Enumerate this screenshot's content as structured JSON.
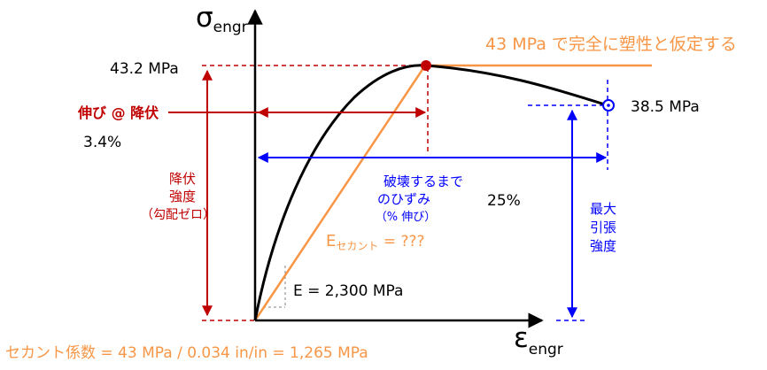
{
  "axes": {
    "y_symbol": "σ",
    "y_sub": "engr",
    "x_symbol": "ε",
    "x_sub": "engr"
  },
  "annotations": {
    "plastic_assumption": "43 MPa で完全に塑性と仮定する",
    "peak_stress": "43.2 MPa",
    "end_stress": "38.5 MPa",
    "elongation_label": "伸び @ 降伏",
    "elongation_value": "3.4%",
    "yield_line1": "降伏",
    "yield_line2": "強度",
    "yield_line3": "（勾配ゼロ）",
    "fracture_line1": "破壊するまで",
    "fracture_line2": "のひずみ",
    "fracture_line3": "（% 伸び）",
    "fracture_value": "25%",
    "uts_line1": "最大",
    "uts_line2": "引張",
    "uts_line3": "強度",
    "secant_symbol": "E",
    "secant_sub": "セカント",
    "secant_value": " = ???",
    "modulus": "E = 2,300 MPa",
    "secant_formula": "セカント係数 = 43 MPa / 0.034 in/in = 1,265 MPa"
  },
  "colors": {
    "black": "#000000",
    "red": "#c00000",
    "blue": "#0000ff",
    "orange": "#f79646",
    "grey": "#808080"
  }
}
